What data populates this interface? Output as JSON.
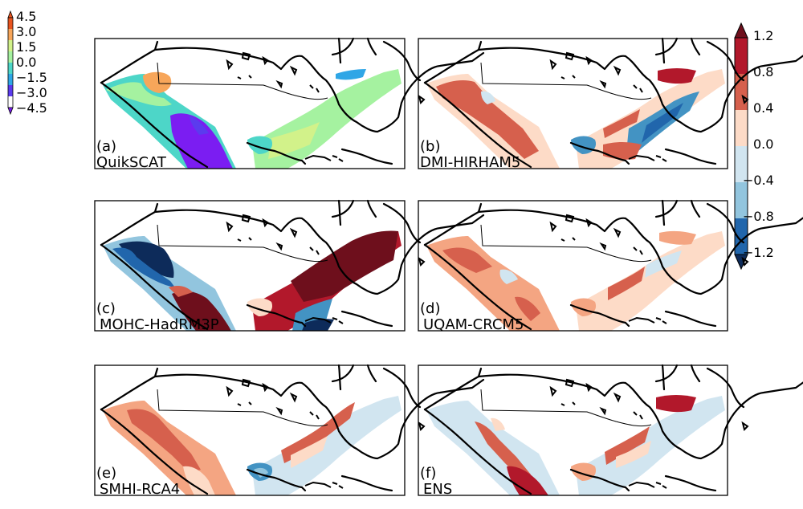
{
  "left_colorbar": {
    "ticks": [
      "4.5",
      "3.0",
      "1.5",
      "0.0",
      "−1.5",
      "−3.0",
      "−4.5"
    ],
    "colors": [
      "#e8541f",
      "#f7a65a",
      "#d2f28a",
      "#a5f2a0",
      "#4dd6c8",
      "#2fa6e6",
      "#5b3bee",
      "#7b1df2"
    ]
  },
  "right_colorbar": {
    "ticks": [
      "1.2",
      "0.8",
      "0.4",
      "0.0",
      "−0.4",
      "−0.8",
      "−1.2"
    ],
    "colors": [
      "#6e0f1c",
      "#b2182b",
      "#d6604d",
      "#f4a582",
      "#fddbc7",
      "#d1e5f0",
      "#92c5de",
      "#4393c3",
      "#2166ac",
      "#0d2b5a"
    ]
  },
  "panels": [
    {
      "id": "a",
      "letter": "(a)",
      "name": "QuikSCAT"
    },
    {
      "id": "b",
      "letter": "(b)",
      "name": "DMI-HIRHAM5"
    },
    {
      "id": "c",
      "letter": "(c)",
      "name": "MOHC-HadRM3P"
    },
    {
      "id": "d",
      "letter": "(d)",
      "name": "UQAM-CRCM5"
    },
    {
      "id": "e",
      "letter": "(e)",
      "name": "SMHI-RCA4"
    },
    {
      "id": "f",
      "letter": "(f)",
      "name": "ENS"
    }
  ]
}
